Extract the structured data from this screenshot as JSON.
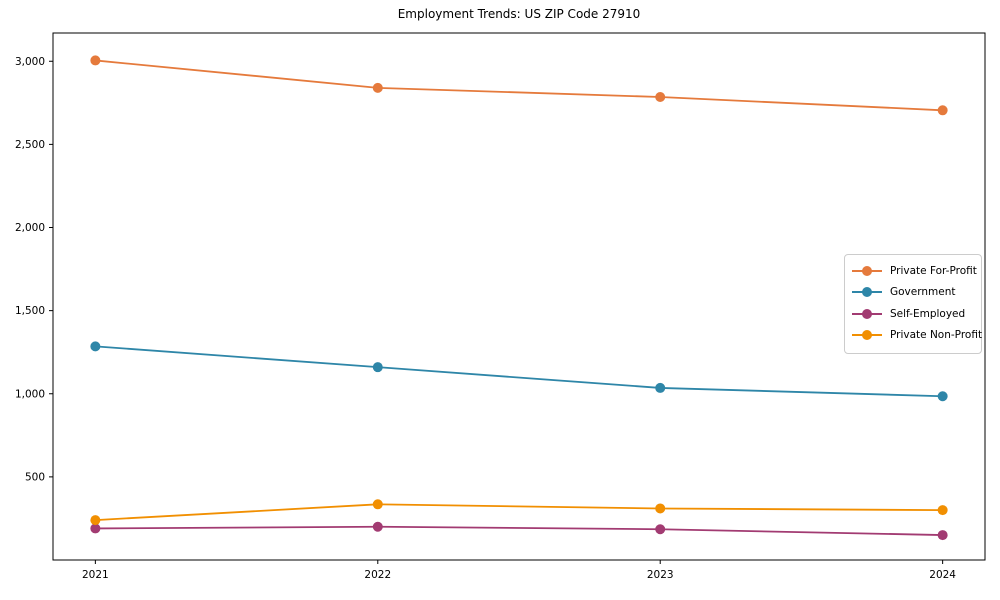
{
  "figure": {
    "title": "Employment Trends: US ZIP Code 27910"
  },
  "chart_data": {
    "type": "line",
    "title": "Employment Trends: US ZIP Code 27910",
    "xlabel": "",
    "ylabel": "",
    "x": [
      2021,
      2022,
      2023,
      2024
    ],
    "x_tick_labels": [
      "2021",
      "2022",
      "2023",
      "2024"
    ],
    "y_ticks": [
      500,
      1000,
      1500,
      2000,
      2500,
      3000
    ],
    "y_tick_labels": [
      "500",
      "1,000",
      "1,500",
      "2,000",
      "2,500",
      "3,000"
    ],
    "xlim": [
      2020.85,
      2024.15
    ],
    "ylim": [
      0,
      3170
    ],
    "grid": false,
    "legend_position": "center right",
    "marker": "circle",
    "series": [
      {
        "name": "Private For-Profit",
        "color": "#E57A3C",
        "values": [
          3005,
          2840,
          2785,
          2705
        ]
      },
      {
        "name": "Government",
        "color": "#2E86A8",
        "values": [
          1285,
          1160,
          1035,
          985
        ]
      },
      {
        "name": "Self-Employed",
        "color": "#A23B72",
        "values": [
          190,
          200,
          185,
          150
        ]
      },
      {
        "name": "Private Non-Profit",
        "color": "#F18F01",
        "values": [
          240,
          335,
          310,
          300
        ]
      }
    ]
  }
}
